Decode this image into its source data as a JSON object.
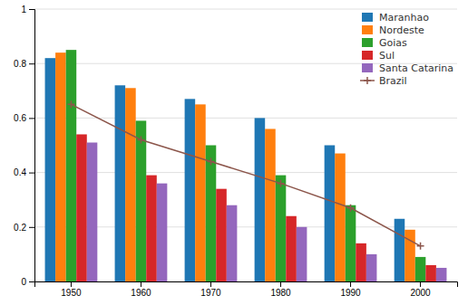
{
  "chart_data": {
    "type": "bar",
    "categories": [
      "1950",
      "1960",
      "1970",
      "1980",
      "1990",
      "2000"
    ],
    "series": [
      {
        "name": "Maranhao",
        "values": [
          0.82,
          0.72,
          0.67,
          0.6,
          0.5,
          0.23
        ]
      },
      {
        "name": "Nordeste",
        "values": [
          0.84,
          0.71,
          0.65,
          0.56,
          0.47,
          0.19
        ]
      },
      {
        "name": "Goias",
        "values": [
          0.85,
          0.59,
          0.5,
          0.39,
          0.28,
          0.09
        ]
      },
      {
        "name": "Sul",
        "values": [
          0.54,
          0.39,
          0.34,
          0.24,
          0.14,
          0.06
        ]
      },
      {
        "name": "Santa Catarina",
        "values": [
          0.51,
          0.36,
          0.28,
          0.2,
          0.1,
          0.05
        ]
      },
      {
        "name": "Brazil",
        "type": "line",
        "marker": "plus",
        "values": [
          0.65,
          0.52,
          0.44,
          0.36,
          0.27,
          0.13
        ]
      }
    ],
    "ylim": [
      0,
      1
    ],
    "yticks": [
      0,
      0.2,
      0.4,
      0.6,
      0.8,
      1
    ],
    "grid": true,
    "legend": "upper right"
  }
}
